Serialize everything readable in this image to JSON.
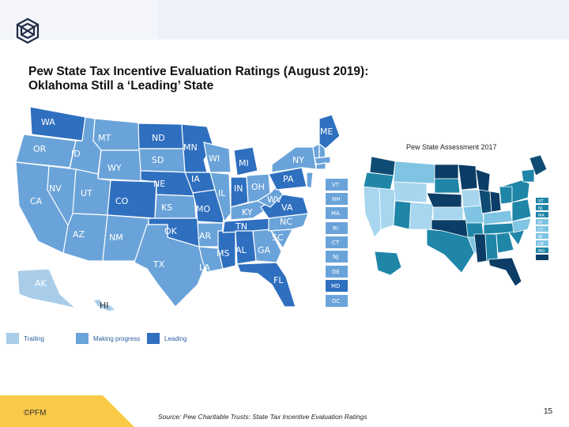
{
  "slide": {
    "title_line1": "Pew State Tax Incentive Evaluation Ratings (August 2019):",
    "title_line2": "Oklahoma Still a ‘Leading’ State",
    "copyright": "©PFM",
    "source": "Source: Pew Charitable Trusts: State Tax Incentive Evaluation Ratings",
    "page_number": "15"
  },
  "colors": {
    "trailing": "#a9cde9",
    "making_progress": "#6aa3d9",
    "leading": "#2f6fbf",
    "state_border": "#ffffff",
    "footer_accent": "#f9c948"
  },
  "map_2019": {
    "state_labels": [
      "WA",
      "OR",
      "ID",
      "MT",
      "ND",
      "MN",
      "WI",
      "MI",
      "NY",
      "ME",
      "SD",
      "WY",
      "NE",
      "IA",
      "IL",
      "IN",
      "OH",
      "PA",
      "CA",
      "NV",
      "UT",
      "CO",
      "KS",
      "MO",
      "KY",
      "WV",
      "VA",
      "AZ",
      "NM",
      "OK",
      "AR",
      "TN",
      "NC",
      "SC",
      "TX",
      "MS",
      "AL",
      "GA",
      "LA",
      "FL",
      "AK",
      "HI"
    ],
    "ratings": {
      "leading": [
        "WA",
        "ND",
        "MN",
        "MI",
        "NE",
        "IA",
        "IN",
        "PA",
        "VA",
        "CO",
        "MO",
        "OK",
        "MS",
        "AL",
        "TN",
        "FL",
        "ME",
        "MD"
      ],
      "making_progress": [
        "OR",
        "ID",
        "MT",
        "SD",
        "WY",
        "NY",
        "WI",
        "IL",
        "OH",
        "KY",
        "NC",
        "SC",
        "CA",
        "NV",
        "UT",
        "KS",
        "AR",
        "TX",
        "LA",
        "GA",
        "AZ",
        "NM",
        "WV",
        "VT",
        "NH",
        "MA",
        "RI",
        "CT",
        "NJ",
        "DE",
        "DC"
      ],
      "trailing": [
        "AK",
        "HI"
      ]
    },
    "northeast_boxes": [
      "VT",
      "NH",
      "MA",
      "RI",
      "CT",
      "NJ",
      "DE",
      "MD",
      "DC"
    ]
  },
  "map_2017": {
    "label": "Pew State Assessment 2017",
    "sidebar_codes": [
      "VT",
      "NJ",
      "MA",
      "RI",
      "CT",
      "NJ",
      "DE",
      "MD"
    ]
  },
  "legend": [
    {
      "label": "Trailing",
      "color": "#a9cde9"
    },
    {
      "label": "Making progress",
      "color": "#6aa3d9"
    },
    {
      "label": "Leading",
      "color": "#2f6fbf"
    }
  ]
}
